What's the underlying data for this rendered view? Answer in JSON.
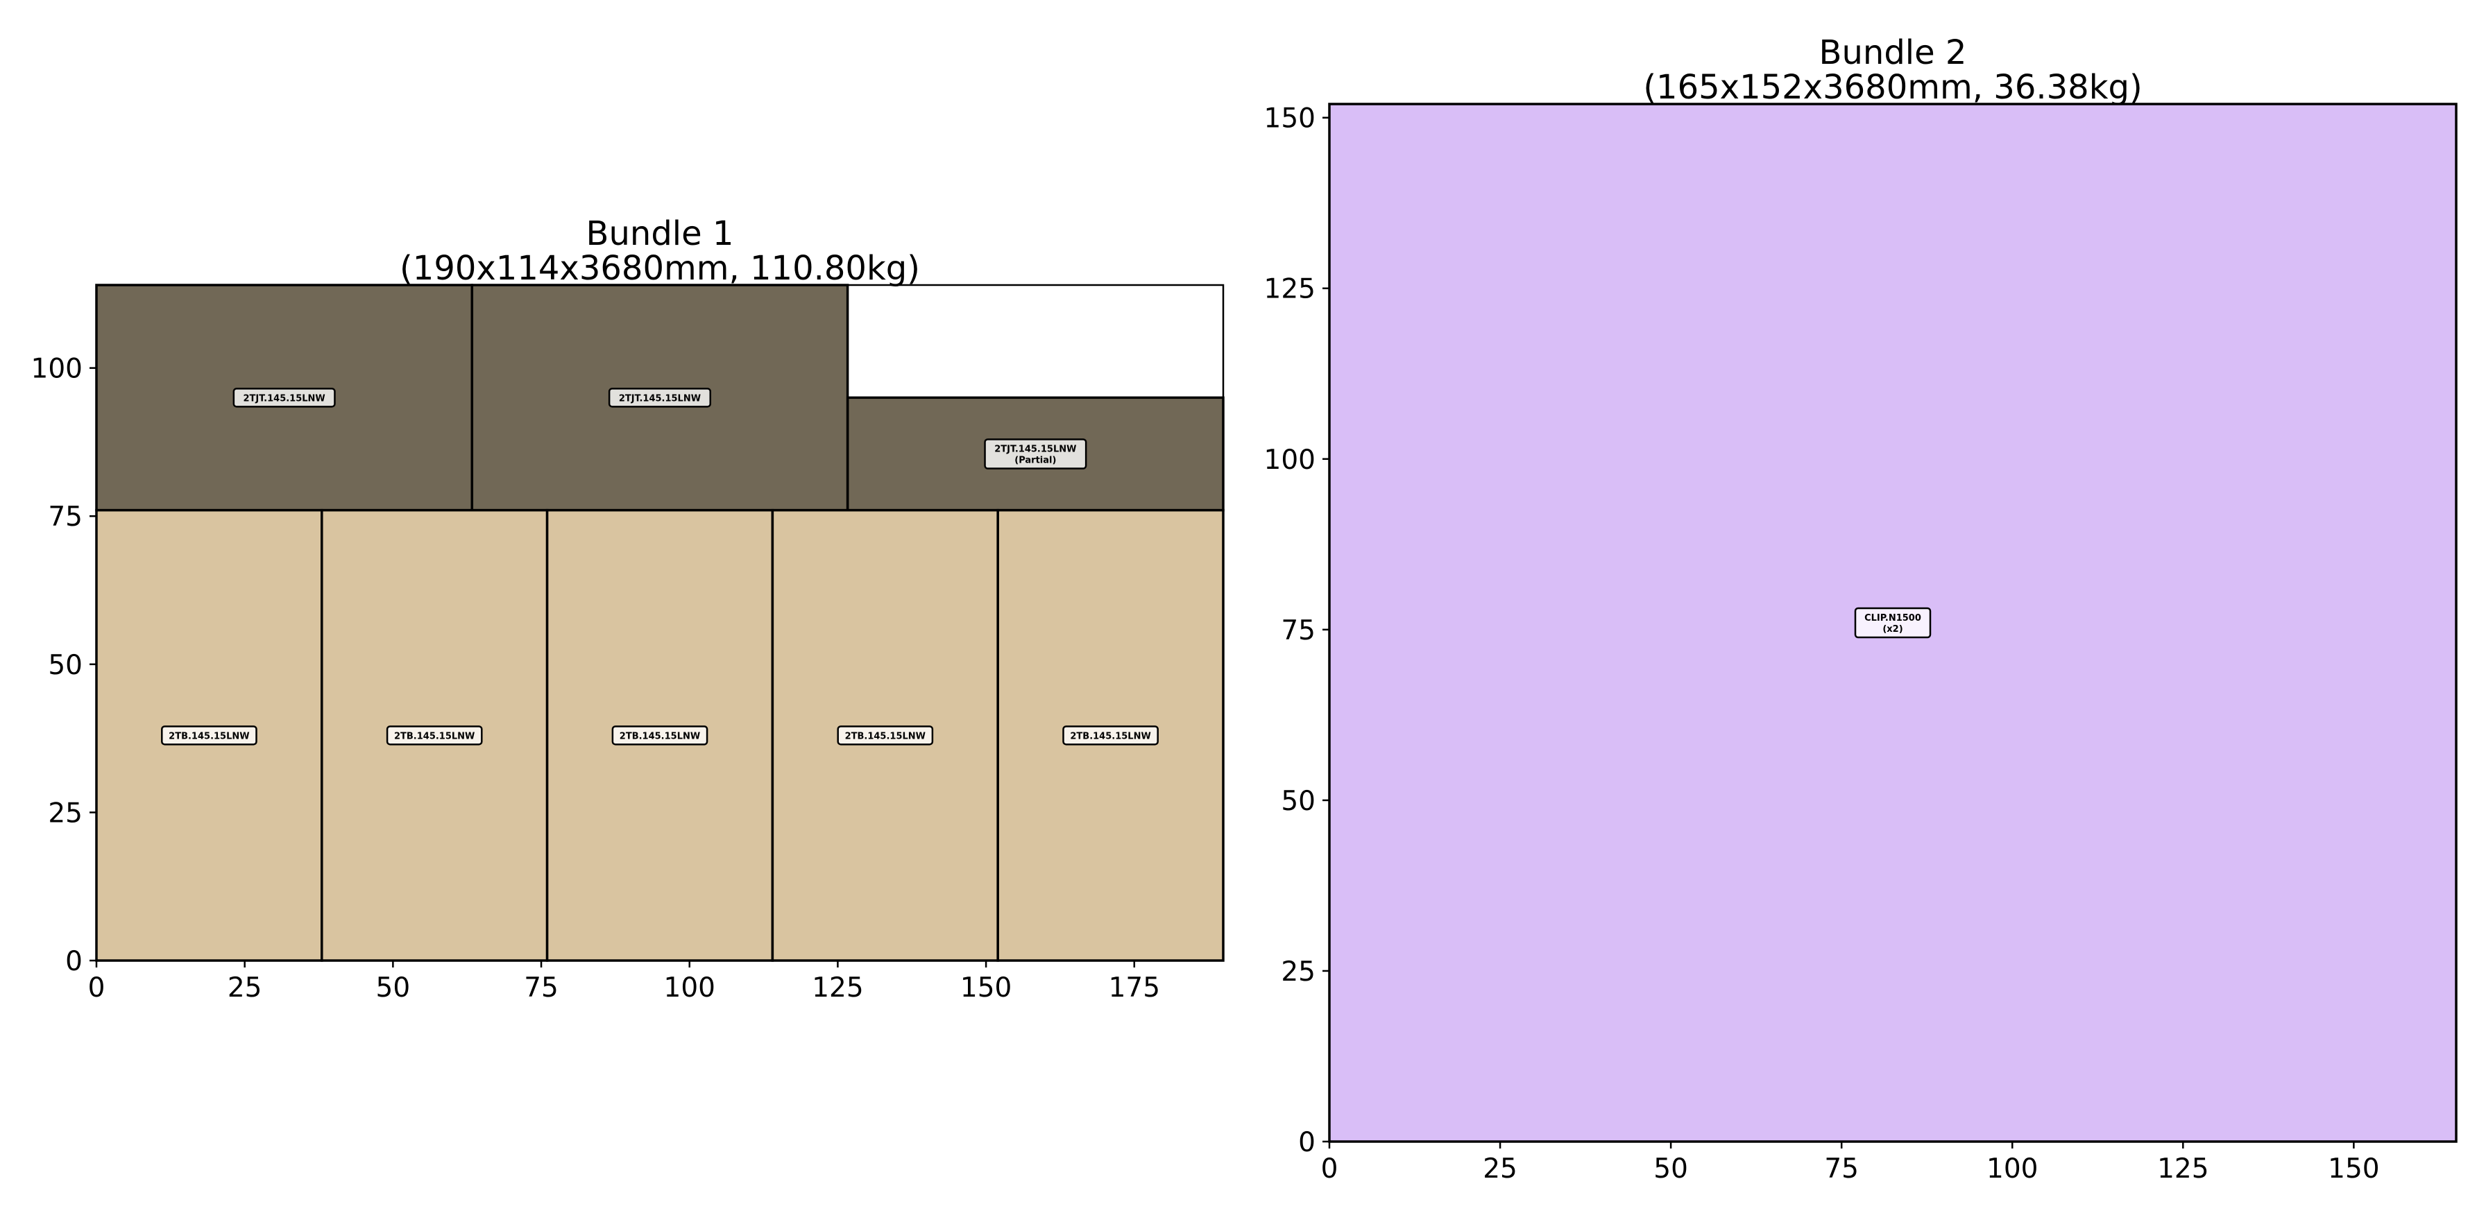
{
  "chart_data": [
    {
      "type": "packing-layout",
      "title_line1": "Bundle 1",
      "title_line2": "(190x114x3680mm, 110.80kg)",
      "xlim": [
        0,
        190
      ],
      "ylim": [
        0,
        114
      ],
      "xticks": [
        0,
        25,
        50,
        75,
        100,
        125,
        150,
        175
      ],
      "yticks": [
        0,
        25,
        50,
        75,
        100
      ],
      "pieces": [
        {
          "x": 0,
          "y": 76,
          "w": 63.33,
          "h": 38,
          "color": "#716856",
          "label": "2TJT.145.15LNW"
        },
        {
          "x": 63.33,
          "y": 76,
          "w": 63.33,
          "h": 38,
          "color": "#716856",
          "label": "2TJT.145.15LNW"
        },
        {
          "x": 126.67,
          "y": 76,
          "w": 63.33,
          "h": 19,
          "color": "#716856",
          "label": "2TJT.145.15LNW",
          "label2": "(Partial)"
        },
        {
          "x": 0,
          "y": 0,
          "w": 38,
          "h": 76,
          "color": "#d9c4a0",
          "label": "2TB.145.15LNW"
        },
        {
          "x": 38,
          "y": 0,
          "w": 38,
          "h": 76,
          "color": "#d9c4a0",
          "label": "2TB.145.15LNW"
        },
        {
          "x": 76,
          "y": 0,
          "w": 38,
          "h": 76,
          "color": "#d9c4a0",
          "label": "2TB.145.15LNW"
        },
        {
          "x": 114,
          "y": 0,
          "w": 38,
          "h": 76,
          "color": "#d9c4a0",
          "label": "2TB.145.15LNW"
        },
        {
          "x": 152,
          "y": 0,
          "w": 38,
          "h": 76,
          "color": "#d9c4a0",
          "label": "2TB.145.15LNW"
        }
      ]
    },
    {
      "type": "packing-layout",
      "title_line1": "Bundle 2",
      "title_line2": "(165x152x3680mm, 36.38kg)",
      "xlim": [
        0,
        165
      ],
      "ylim": [
        0,
        152
      ],
      "xticks": [
        0,
        25,
        50,
        75,
        100,
        125,
        150
      ],
      "yticks": [
        0,
        25,
        50,
        75,
        100,
        125,
        150
      ],
      "pieces": [
        {
          "x": 0,
          "y": 0,
          "w": 165,
          "h": 152,
          "color": "#d9bef7",
          "label": "CLIP.N1500",
          "label2": "(x2)"
        }
      ]
    }
  ]
}
